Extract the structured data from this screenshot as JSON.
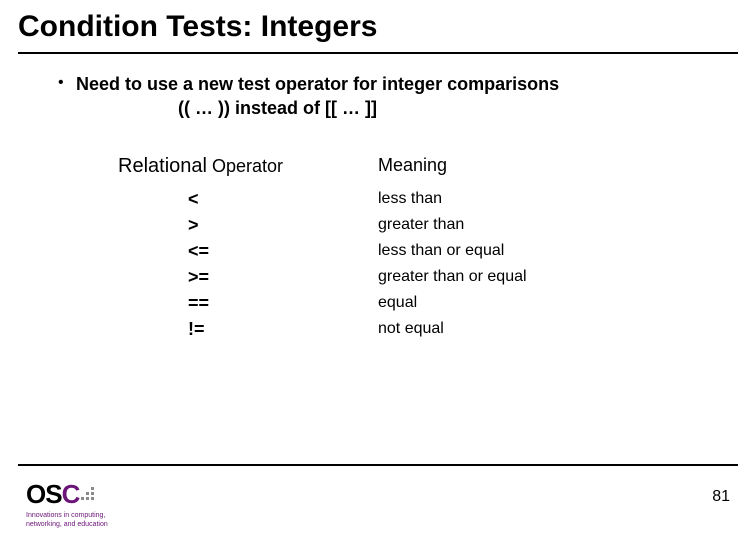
{
  "title": "Condition Tests: Integers",
  "bullet": {
    "main": "Need to use a new test operator for integer comparisons",
    "sub": "(( … )) instead of [[ … ]]"
  },
  "table": {
    "header_op_big": "Relational",
    "header_op_small": " Operator",
    "header_meaning": "Meaning",
    "rows": [
      {
        "op": "<",
        "meaning": "less than"
      },
      {
        "op": ">",
        "meaning": "greater than"
      },
      {
        "op": "<=",
        "meaning": "less than or equal"
      },
      {
        "op": ">=",
        "meaning": "greater than or equal"
      },
      {
        "op": "==",
        "meaning": "equal"
      },
      {
        "op": "!=",
        "meaning": "not equal"
      }
    ]
  },
  "footer": {
    "logo_os": "OS",
    "logo_c": "C",
    "tagline1": "Innovations in computing,",
    "tagline2": "networking, and education",
    "page": "81"
  },
  "colors": {
    "accent": "#6a1577",
    "dot_gray": "#8b8b8b"
  }
}
